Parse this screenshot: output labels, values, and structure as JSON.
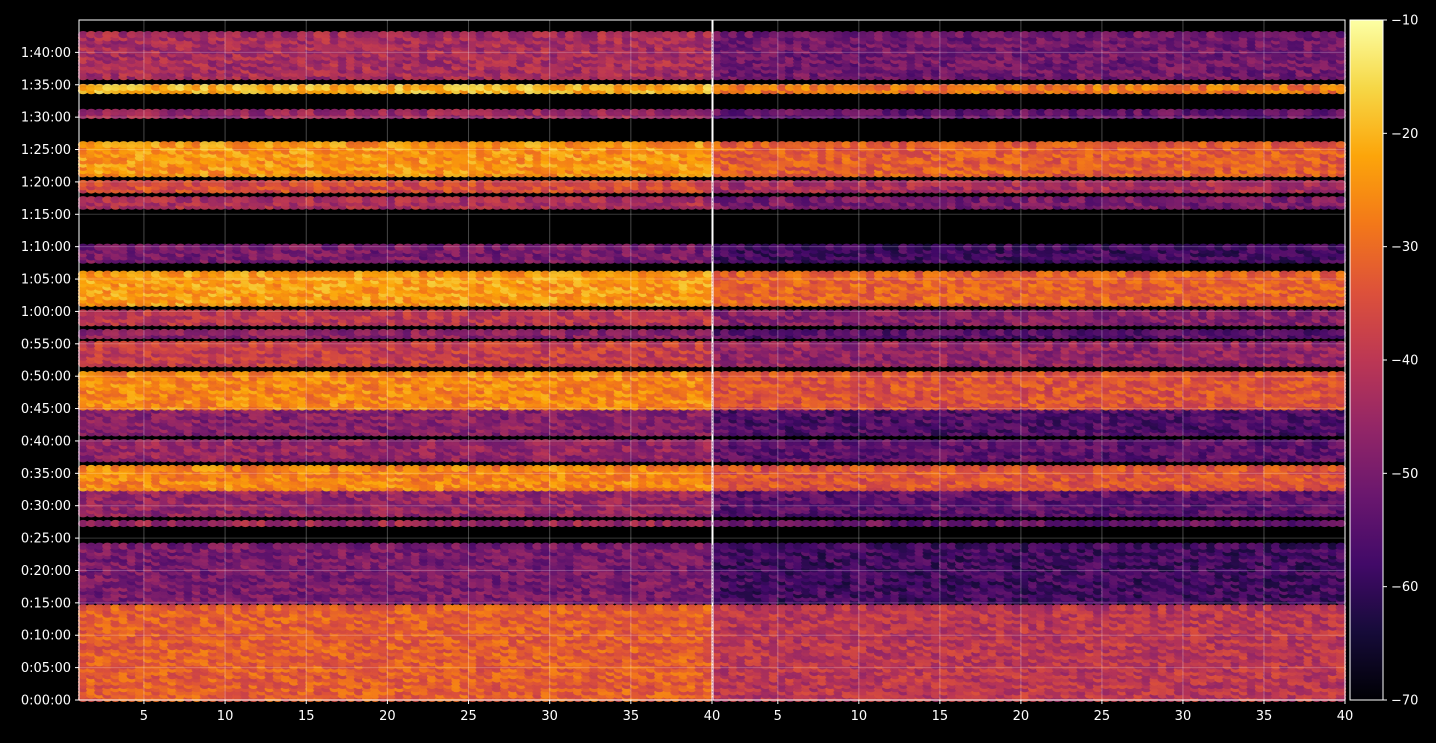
{
  "chart_data": {
    "type": "heatmap",
    "title": "",
    "xlabel": "",
    "ylabel": "",
    "colormap": "inferno",
    "background": "#000000",
    "grid": true,
    "panels": [
      {
        "name": "",
        "xlim": [
          1,
          40
        ],
        "xticks": [
          5,
          10,
          15,
          20,
          25,
          30,
          35,
          40
        ],
        "offset_db": 0
      },
      {
        "name": "",
        "xlim": [
          1,
          40
        ],
        "xticks": [
          5,
          10,
          15,
          20,
          25,
          30,
          35,
          40
        ],
        "offset_db": -8
      }
    ],
    "y_axis": {
      "unit": "seconds",
      "ylim": [
        0,
        6300
      ],
      "ticks": [
        0,
        300,
        600,
        900,
        1200,
        1500,
        1800,
        2100,
        2400,
        2700,
        3000,
        3300,
        3600,
        3900,
        4200,
        4500,
        4800,
        5100,
        5400,
        5700,
        6000
      ],
      "tick_labels": [
        "0:00:00",
        "0:05:00",
        "0:10:00",
        "0:15:00",
        "0:20:00",
        "0:25:00",
        "0:30:00",
        "0:35:00",
        "0:40:00",
        "0:45:00",
        "0:50:00",
        "0:55:00",
        "1:00:00",
        "1:05:00",
        "1:10:00",
        "1:15:00",
        "1:20:00",
        "1:25:00",
        "1:30:00",
        "1:35:00",
        "1:40:00"
      ]
    },
    "colorbar": {
      "min": -70,
      "max": -10,
      "ticks": [
        -10,
        -20,
        -30,
        -40,
        -50,
        -60,
        -70
      ],
      "tick_labels": [
        "−10",
        "−20",
        "−30",
        "−40",
        "−50",
        "−60",
        "−70"
      ]
    },
    "bands": [
      {
        "from": 0,
        "to": 870,
        "level_db": -32
      },
      {
        "from": 900,
        "to": 1440,
        "level_db": -50
      },
      {
        "from": 1620,
        "to": 1650,
        "level_db": -44
      },
      {
        "from": 1710,
        "to": 1950,
        "level_db": -46
      },
      {
        "from": 1950,
        "to": 2160,
        "level_db": -26
      },
      {
        "from": 2220,
        "to": 2400,
        "level_db": -46
      },
      {
        "from": 2460,
        "to": 2760,
        "level_db": -48
      },
      {
        "from": 2700,
        "to": 3030,
        "level_db": -26
      },
      {
        "from": 3100,
        "to": 3300,
        "level_db": -38
      },
      {
        "from": 3360,
        "to": 3420,
        "level_db": -47
      },
      {
        "from": 3480,
        "to": 3600,
        "level_db": -40
      },
      {
        "from": 3660,
        "to": 3960,
        "level_db": -23
      },
      {
        "from": 4060,
        "to": 4200,
        "level_db": -50
      },
      {
        "from": 4560,
        "to": 4650,
        "level_db": -42
      },
      {
        "from": 4710,
        "to": 4800,
        "level_db": -35
      },
      {
        "from": 4860,
        "to": 5160,
        "level_db": -24
      },
      {
        "from": 5400,
        "to": 5460,
        "level_db": -45
      },
      {
        "from": 5630,
        "to": 5680,
        "level_db": -20
      },
      {
        "from": 5760,
        "to": 6160,
        "level_db": -43
      }
    ]
  }
}
